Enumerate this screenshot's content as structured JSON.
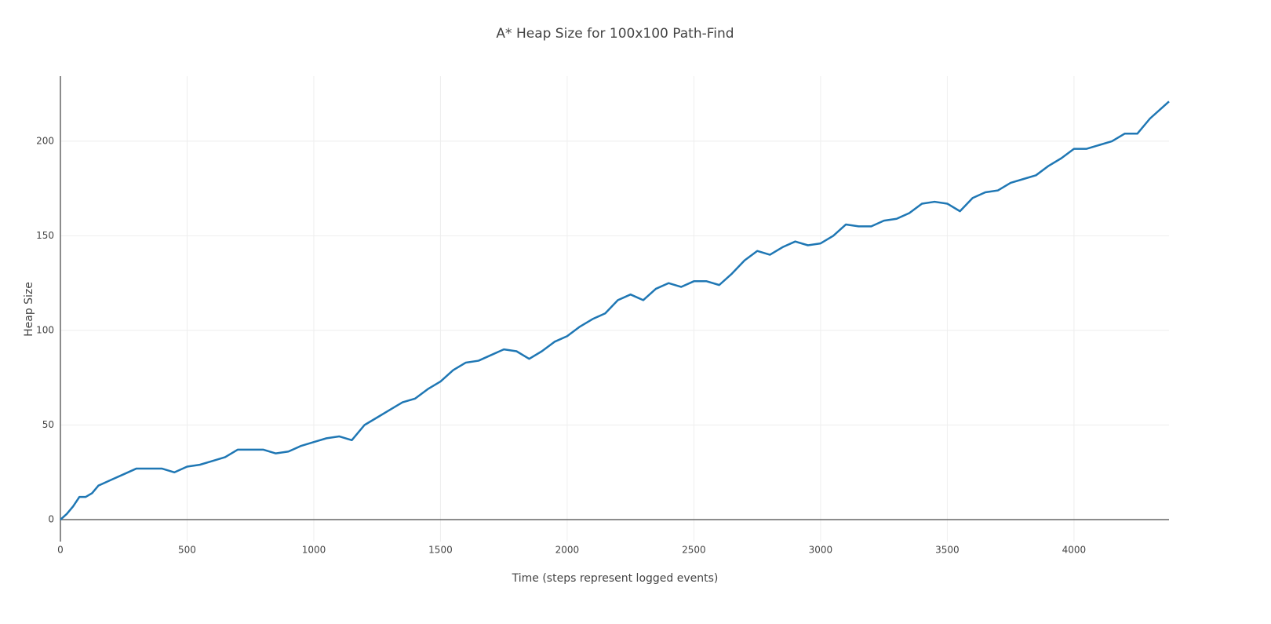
{
  "chart_data": {
    "type": "line",
    "title": "A* Heap Size for 100x100 Path-Find",
    "x_label": "Time (steps represent logged events)",
    "y_label": "Heap Size",
    "x": [
      0,
      25,
      50,
      75,
      100,
      125,
      150,
      200,
      250,
      300,
      350,
      400,
      450,
      500,
      550,
      600,
      650,
      700,
      750,
      800,
      850,
      900,
      950,
      1000,
      1050,
      1100,
      1150,
      1200,
      1250,
      1300,
      1350,
      1400,
      1450,
      1500,
      1550,
      1600,
      1650,
      1700,
      1750,
      1800,
      1850,
      1900,
      1950,
      2000,
      2050,
      2100,
      2150,
      2200,
      2250,
      2300,
      2350,
      2400,
      2450,
      2500,
      2550,
      2600,
      2650,
      2700,
      2750,
      2800,
      2850,
      2900,
      2950,
      3000,
      3050,
      3100,
      3150,
      3200,
      3250,
      3300,
      3350,
      3400,
      3450,
      3500,
      3550,
      3600,
      3650,
      3700,
      3750,
      3800,
      3850,
      3900,
      3950,
      4000,
      4050,
      4100,
      4150,
      4200,
      4250,
      4300,
      4350,
      4375
    ],
    "series": [
      {
        "color": "#1f77b4",
        "values": [
          0,
          3,
          7,
          12,
          12,
          14,
          18,
          21,
          24,
          27,
          27,
          27,
          25,
          28,
          29,
          31,
          33,
          37,
          37,
          37,
          35,
          36,
          39,
          41,
          43,
          44,
          42,
          50,
          54,
          58,
          62,
          64,
          69,
          73,
          79,
          83,
          84,
          87,
          90,
          89,
          85,
          89,
          94,
          97,
          102,
          106,
          109,
          116,
          119,
          116,
          122,
          125,
          123,
          126,
          126,
          124,
          130,
          137,
          142,
          140,
          144,
          147,
          145,
          146,
          150,
          156,
          155,
          155,
          158,
          159,
          162,
          167,
          168,
          167,
          163,
          170,
          173,
          174,
          178,
          180,
          182,
          187,
          191,
          196,
          196,
          198,
          200,
          204,
          204,
          212,
          218,
          221
        ]
      }
    ],
    "xlim": [
      0,
      4375
    ],
    "ylim": [
      -11.6,
      234.4
    ],
    "xticks": [
      0,
      500,
      1000,
      1500,
      2000,
      2500,
      3000,
      3500,
      4000
    ],
    "yticks": [
      0,
      50,
      100,
      150,
      200
    ],
    "grid": true
  }
}
